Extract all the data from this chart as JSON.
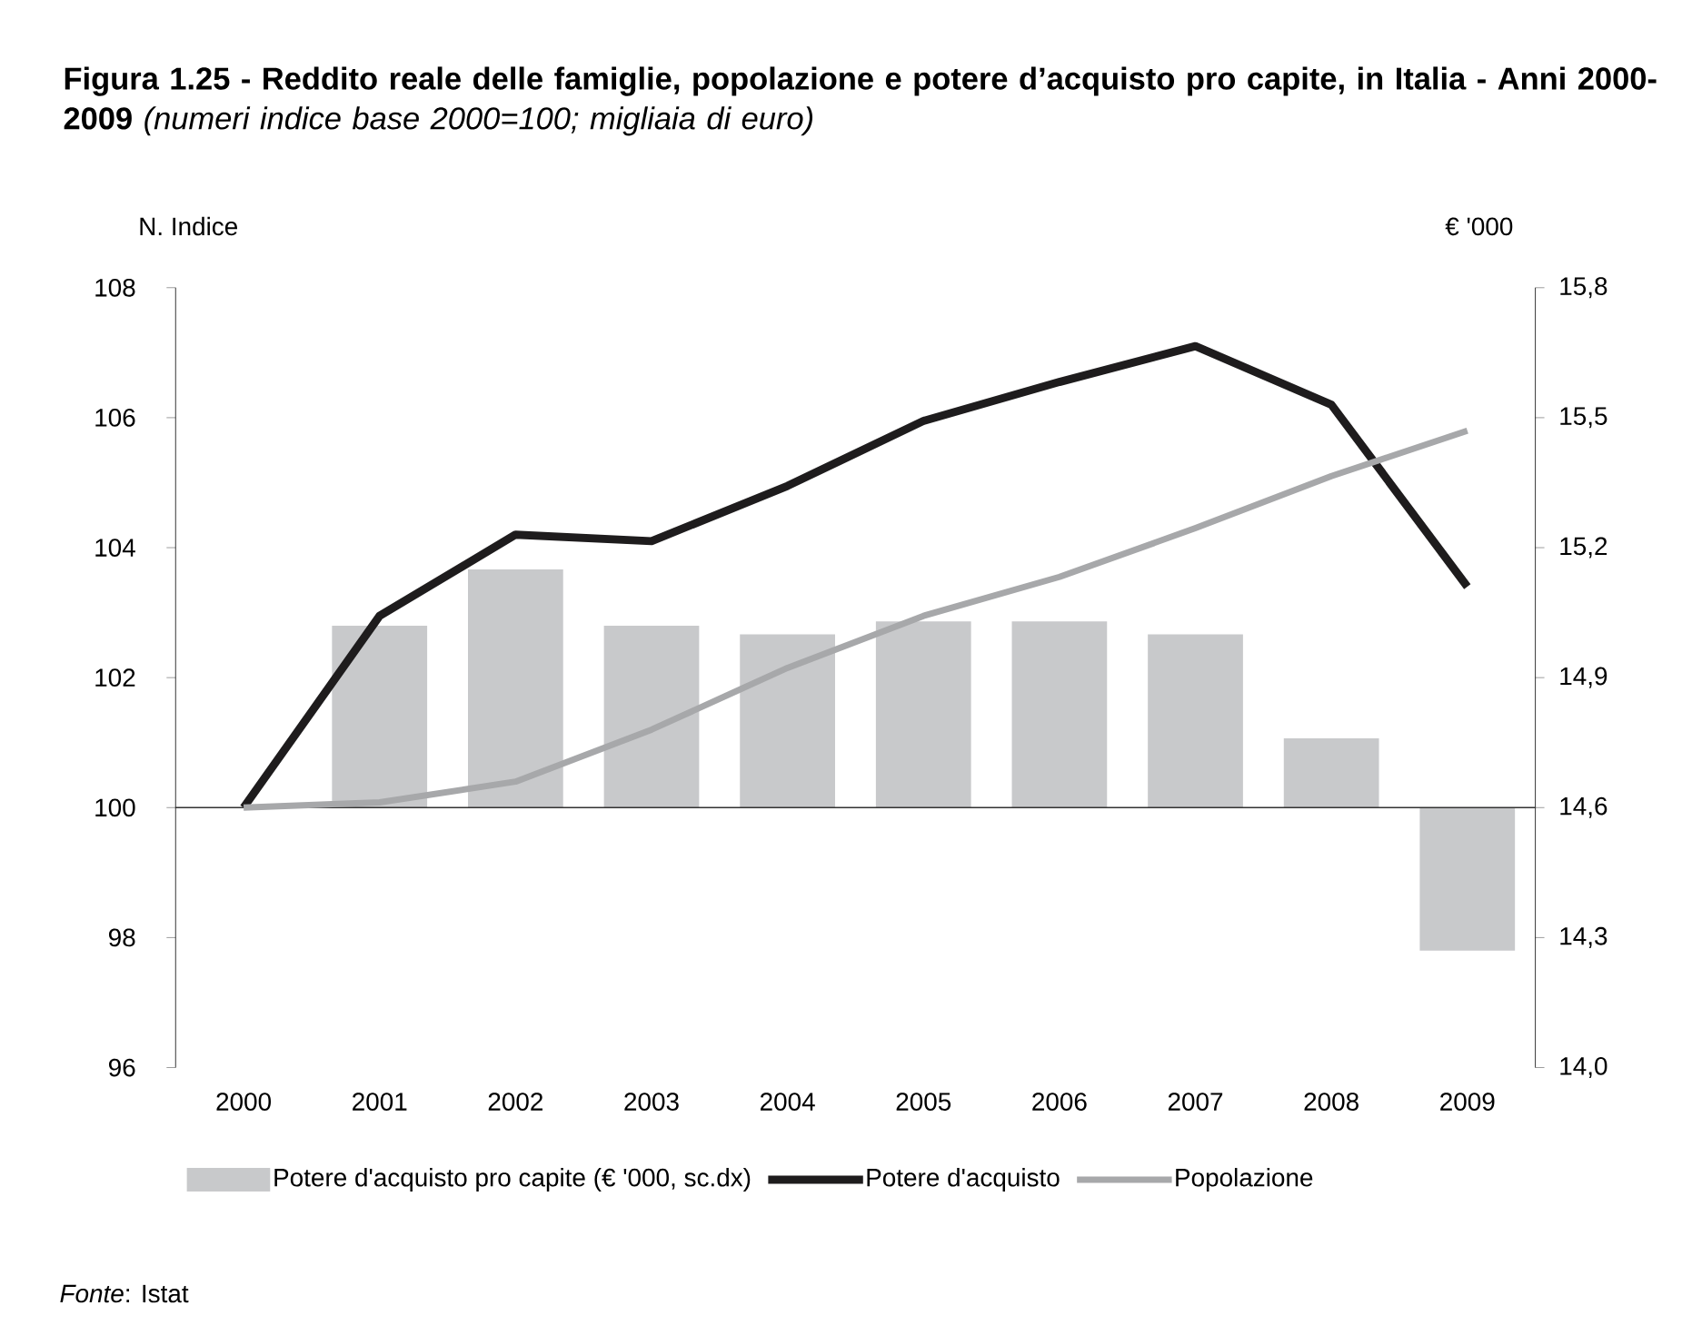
{
  "chart_data": {
    "type": "line",
    "title": "**Figura 1.25 - Reddito reale delle famiglie, popolazione e potere d’acquisto pro capite, in Italia - Anni 2000-2009** *(numeri indice base 2000=100; migliaia di euro)*",
    "ylabel": "N. Indice",
    "y2label": "€ '000",
    "categories": [
      "2000",
      "2001",
      "2002",
      "2003",
      "2004",
      "2005",
      "2006",
      "2007",
      "2008",
      "2009"
    ],
    "series": [
      {
        "name": "Potere d'acquisto pro capite (€ '000, sc.dx)",
        "type": "bar",
        "axis": "y2",
        "color": "#c8c9cb",
        "base": [
          null,
          14.6,
          14.6,
          14.6,
          14.6,
          14.6,
          14.6,
          14.6,
          14.6,
          14.6
        ],
        "values": [
          null,
          0.42,
          0.55,
          0.42,
          0.4,
          0.43,
          0.43,
          0.4,
          0.16,
          -0.33
        ]
      },
      {
        "name": "Potere d'acquisto",
        "color": "#1e1c1d",
        "values": [
          100,
          102.95,
          104.2,
          104.1,
          104.95,
          105.95,
          106.55,
          107.1,
          106.2,
          103.4
        ]
      },
      {
        "name": "Popolazione",
        "color": "#a7a8aa",
        "values": [
          100,
          100.08,
          100.4,
          101.2,
          102.15,
          102.95,
          103.55,
          104.3,
          105.1,
          105.8
        ]
      }
    ],
    "ylim": [
      96,
      108
    ],
    "yticks": [
      96,
      98,
      100,
      102,
      104,
      106,
      108
    ],
    "y2lim": [
      14.0,
      15.8
    ],
    "y2ticks": [
      {
        "value": 14.0,
        "label": "14,0"
      },
      {
        "value": 14.3,
        "label": "14,3"
      },
      {
        "value": 14.6,
        "label": "14,6"
      },
      {
        "value": 14.9,
        "label": "14,9"
      },
      {
        "value": 15.2,
        "label": "15,2"
      },
      {
        "value": 15.5,
        "label": "15,5"
      },
      {
        "value": 15.8,
        "label": "15,8"
      }
    ],
    "ref_lines": [
      {
        "axis": "y2",
        "value": 14.6,
        "color": "#333333"
      }
    ],
    "legend": "bottom",
    "annotations": [
      "*Fonte*: Istat"
    ]
  }
}
